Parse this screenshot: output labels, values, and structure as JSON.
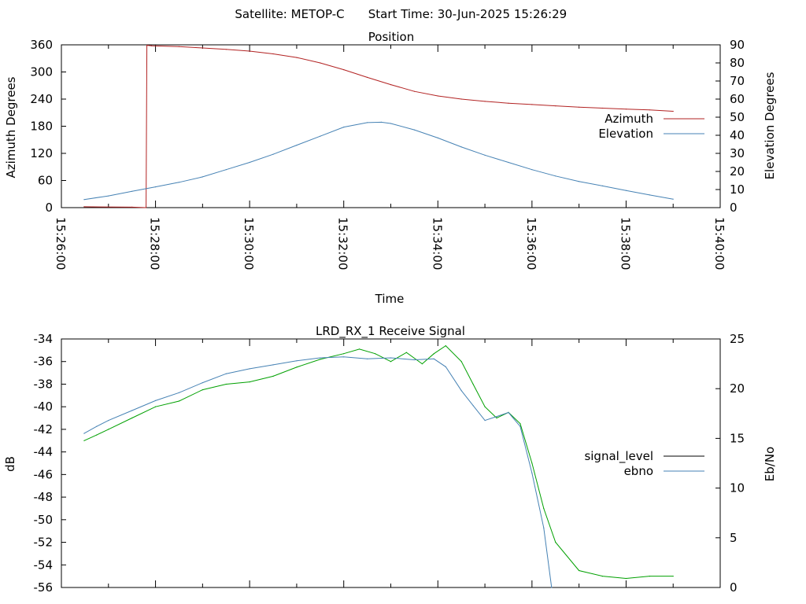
{
  "header": {
    "satellite_text": "Satellite: METOP-C",
    "start_time_text": "Start Time: 30-Jun-2025 15:26:29"
  },
  "chart_data": [
    {
      "type": "line",
      "title": "Position",
      "xlabel": "Time",
      "ylabel": "Azimuth Degrees",
      "y2label": "Elevation Degrees",
      "xlim": [
        "15:26:00",
        "15:40:00"
      ],
      "ylim": [
        0,
        360
      ],
      "y2lim": [
        0,
        90
      ],
      "x_ticks": [
        "15:26:00",
        "15:28:00",
        "15:30:00",
        "15:32:00",
        "15:34:00",
        "15:36:00",
        "15:38:00",
        "15:40:00"
      ],
      "y_ticks": [
        "0",
        "60",
        "120",
        "180",
        "240",
        "300",
        "360"
      ],
      "y2_ticks": [
        "0",
        "10",
        "20",
        "30",
        "40",
        "50",
        "60",
        "70",
        "80",
        "90"
      ],
      "grid": false,
      "legend_position": "right",
      "series": [
        {
          "name": "Azimuth",
          "axis": "y",
          "color": "#b22222",
          "x": [
            "15:26:29",
            "15:27:30",
            "15:27:48",
            "15:27:49",
            "15:27:55",
            "15:28:30",
            "15:29:00",
            "15:29:30",
            "15:30:00",
            "15:30:30",
            "15:31:00",
            "15:31:30",
            "15:32:00",
            "15:32:30",
            "15:33:00",
            "15:33:30",
            "15:34:00",
            "15:34:30",
            "15:35:00",
            "15:35:30",
            "15:36:00",
            "15:36:30",
            "15:37:00",
            "15:37:30",
            "15:38:00",
            "15:38:30",
            "15:39:00"
          ],
          "values": [
            2,
            1,
            0,
            359,
            358,
            356,
            353,
            350,
            346,
            340,
            332,
            320,
            305,
            288,
            272,
            257,
            247,
            240,
            235,
            231,
            228,
            225,
            222,
            220,
            218,
            216,
            213
          ]
        },
        {
          "name": "Elevation",
          "axis": "y2",
          "color": "#4682b4",
          "x": [
            "15:26:29",
            "15:27:00",
            "15:27:30",
            "15:28:00",
            "15:28:30",
            "15:29:00",
            "15:29:30",
            "15:30:00",
            "15:30:30",
            "15:31:00",
            "15:31:30",
            "15:32:00",
            "15:32:30",
            "15:32:48",
            "15:33:00",
            "15:33:30",
            "15:34:00",
            "15:34:30",
            "15:35:00",
            "15:35:30",
            "15:36:00",
            "15:36:30",
            "15:37:00",
            "15:37:30",
            "15:38:00",
            "15:38:30",
            "15:39:00"
          ],
          "values": [
            4.5,
            6.5,
            9,
            11.5,
            14,
            17,
            21,
            25,
            29.5,
            34.5,
            39.5,
            44.5,
            47,
            47.2,
            46.5,
            43,
            38.5,
            33.5,
            29,
            25,
            21,
            17.5,
            14.5,
            12,
            9.5,
            7,
            4.7
          ]
        }
      ]
    },
    {
      "type": "line",
      "title": "LRD_RX_1 Receive Signal",
      "xlabel": "",
      "ylabel": "dB",
      "y2label": "Eb/No",
      "xlim": [
        "15:26:00",
        "15:40:00"
      ],
      "ylim": [
        -56,
        -34
      ],
      "y2lim": [
        0,
        25
      ],
      "y_ticks": [
        "-34",
        "-36",
        "-38",
        "-40",
        "-42",
        "-44",
        "-46",
        "-48",
        "-50",
        "-52",
        "-54",
        "-56"
      ],
      "y2_ticks": [
        "0",
        "5",
        "10",
        "15",
        "20",
        "25"
      ],
      "grid": false,
      "legend_position": "right",
      "legend_entries": [
        {
          "name": "signal_level",
          "color": "#000000"
        },
        {
          "name": "ebno",
          "color": "#4682b4"
        }
      ],
      "series": [
        {
          "name": "signal_level (green)",
          "axis": "y",
          "color": "#00a000",
          "x": [
            "15:26:29",
            "15:26:45",
            "15:27:00",
            "15:27:30",
            "15:28:00",
            "15:28:30",
            "15:29:00",
            "15:29:30",
            "15:30:00",
            "15:30:30",
            "15:31:00",
            "15:31:30",
            "15:32:00",
            "15:32:20",
            "15:32:40",
            "15:33:00",
            "15:33:20",
            "15:33:40",
            "15:33:55",
            "15:34:10",
            "15:34:30",
            "15:34:45",
            "15:35:00",
            "15:35:15",
            "15:35:30",
            "15:35:45",
            "15:36:00",
            "15:36:15",
            "15:36:30",
            "15:37:00",
            "15:37:30",
            "15:38:00",
            "15:38:30",
            "15:39:00"
          ],
          "values": [
            -43,
            -42.5,
            -42,
            -41,
            -40,
            -39.5,
            -38.5,
            -38,
            -37.8,
            -37.3,
            -36.5,
            -35.8,
            -35.3,
            -34.9,
            -35.3,
            -36,
            -35.2,
            -36.2,
            -35.3,
            -34.6,
            -36,
            -38,
            -40,
            -41,
            -40.5,
            -41.5,
            -45,
            -49,
            -52,
            -54.5,
            -55,
            -55.2,
            -55,
            -55
          ]
        },
        {
          "name": "ebno",
          "axis": "y2",
          "color": "#4682b4",
          "x": [
            "15:26:29",
            "15:26:45",
            "15:27:00",
            "15:27:30",
            "15:28:00",
            "15:28:30",
            "15:29:00",
            "15:29:30",
            "15:30:00",
            "15:30:30",
            "15:31:00",
            "15:31:30",
            "15:32:00",
            "15:32:30",
            "15:33:00",
            "15:33:30",
            "15:33:55",
            "15:34:10",
            "15:34:30",
            "15:34:45",
            "15:35:00",
            "15:35:15",
            "15:35:30",
            "15:35:45",
            "15:36:00",
            "15:36:15",
            "15:36:25"
          ],
          "values": [
            15.5,
            16.2,
            16.8,
            17.8,
            18.8,
            19.6,
            20.6,
            21.5,
            22,
            22.4,
            22.8,
            23.1,
            23.2,
            23.0,
            23.1,
            22.9,
            23.0,
            22.2,
            19.8,
            18.3,
            16.8,
            17.2,
            17.6,
            16.2,
            11.5,
            6,
            0
          ]
        }
      ]
    }
  ]
}
